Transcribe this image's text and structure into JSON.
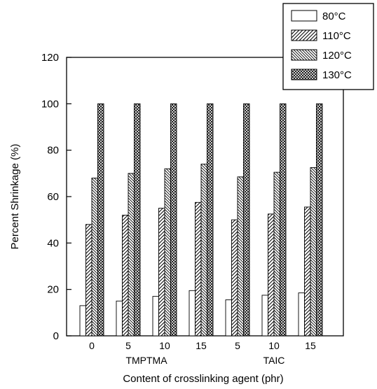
{
  "chart_data": {
    "type": "bar",
    "categories": [
      "0",
      "5",
      "10",
      "15",
      "5",
      "10",
      "15"
    ],
    "groups": [
      {
        "label": "TMPTMA",
        "categories": [
          "0",
          "5",
          "10",
          "15"
        ]
      },
      {
        "label": "TAIC",
        "categories": [
          "5",
          "10",
          "15"
        ]
      }
    ],
    "series": [
      {
        "name": "80°C",
        "values": [
          13,
          15,
          17,
          19.5,
          15.5,
          17.5,
          18.5
        ]
      },
      {
        "name": "110°C",
        "values": [
          48,
          52,
          55,
          57.5,
          50,
          52.5,
          55.5
        ]
      },
      {
        "name": "120°C",
        "values": [
          68,
          70,
          72,
          74,
          68.5,
          70.5,
          72.5
        ]
      },
      {
        "name": "130°C",
        "values": [
          100,
          100,
          100,
          100,
          100,
          100,
          100
        ]
      }
    ],
    "xlabel": "Content of crosslinking agent (phr)",
    "ylabel": "Percent Shrinkage (%)",
    "ylim": [
      0,
      120
    ],
    "yticks": [
      0,
      20,
      40,
      60,
      80,
      100,
      120
    ],
    "legend_position": "top-right",
    "grid": false
  }
}
